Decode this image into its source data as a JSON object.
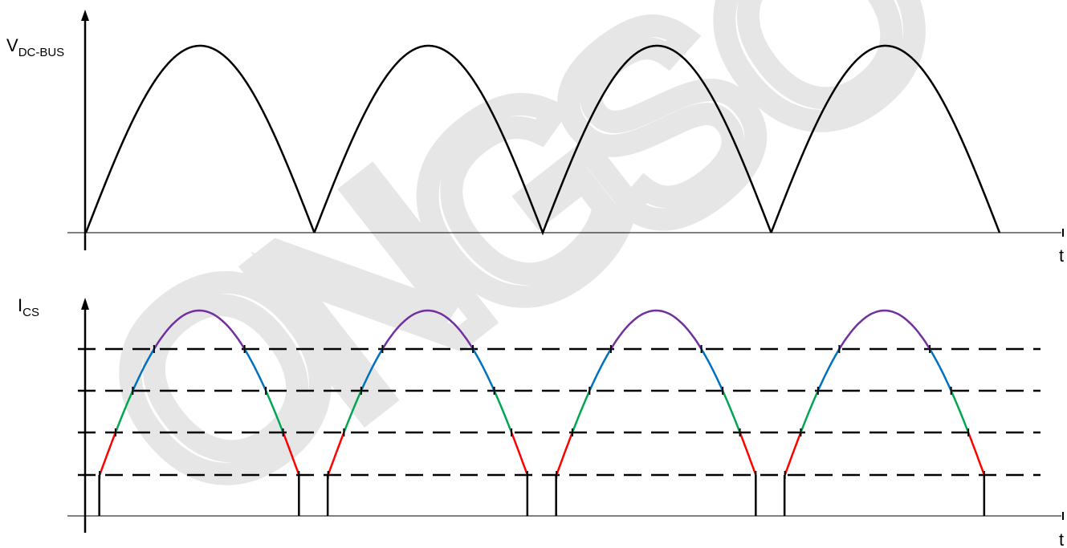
{
  "diagram": {
    "top_panel": {
      "y_label_main": "V",
      "y_label_sub": "DC-BUS",
      "x_label": "t",
      "waveform": "rectified-sine",
      "humps": 4,
      "stroke_color": "#000000"
    },
    "bottom_panel": {
      "y_label_main": "I",
      "y_label_sub": "CS",
      "x_label": "t",
      "waveform": "stepped-rectified-sine",
      "humps": 4,
      "threshold_lines": 4,
      "threshold_style": "dashed",
      "segment_colors": {
        "level1": "#ff0000",
        "level2": "#00a651",
        "level3": "#0070c0",
        "level4": "#7030a0",
        "base": "#000000"
      }
    },
    "watermark": {
      "text": "ONGSO",
      "color": "#e6e6e6"
    }
  }
}
